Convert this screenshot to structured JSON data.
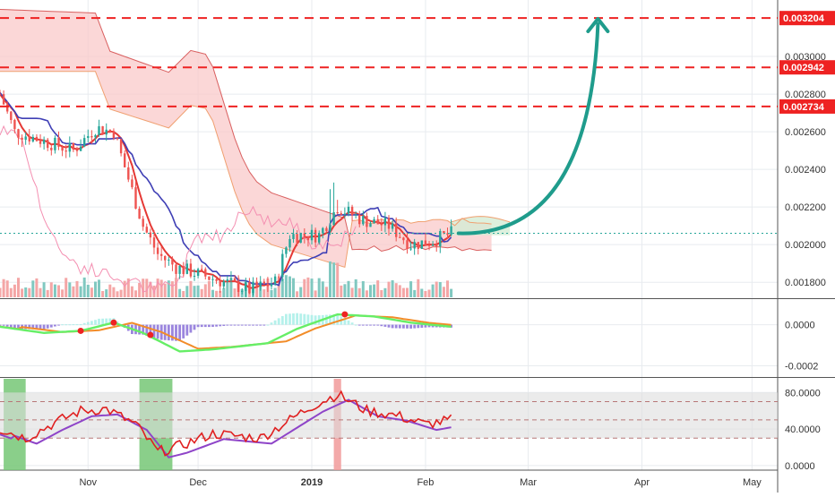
{
  "colors": {
    "background": "#ffffff",
    "grid": "#e8ebef",
    "pane_border": "#555555",
    "axis_text": "#333333",
    "price_line_red": "#e53935",
    "kijun_blue": "#3f3fb5",
    "cloud_red": "#f9caca",
    "cloud_green": "#d5ecd4",
    "span_a": "#f0a070",
    "span_b": "#d96060",
    "lagging_pink": "#f48fb1",
    "candle_up": "#26a69a",
    "candle_down": "#ef5350",
    "vol_up": "#80c8c0",
    "vol_down": "#f4a6a6",
    "current_price_line": "#26a69a",
    "arrow": "#1f9c8c",
    "resistance_line": "#ee2222",
    "label_bg": "#ee2222",
    "label_text": "#ffffff",
    "macd_green": "#66ee66",
    "macd_red": "#ee2222",
    "macd_orange": "#f28c28",
    "macd_purple": "#8a70d8",
    "macd_cyan": "#a8eee8",
    "rsi_red": "#e02020",
    "rsi_purple": "#8e44c8",
    "rsi_band": "#dddddd",
    "rsi_green_zone": "#76c776",
    "rsi_red_zone": "#f19a9a"
  },
  "chart_data": [
    {
      "type": "candlestick",
      "name": "price",
      "yscale": "linear",
      "ylim": [
        0.00172,
        0.0033
      ],
      "grid": true,
      "price_ticks": [
        "0.003000",
        "0.002800",
        "0.002600",
        "0.002400",
        "0.002200",
        "0.002000",
        "0.001800"
      ],
      "resistance_levels": [
        {
          "value": 0.003204,
          "label": "0.003204"
        },
        {
          "value": 0.002942,
          "label": "0.002942"
        },
        {
          "value": 0.002734,
          "label": "0.002734"
        }
      ],
      "current_price": 0.00206,
      "projection_arrow": {
        "from_x": "2019-02-10",
        "from_y": 0.00206,
        "to_x": "2019-03-20",
        "to_y": 0.0032
      }
    },
    {
      "type": "line",
      "name": "macd",
      "ylim": [
        -0.00025,
        0.00012
      ],
      "grid": true,
      "ticks": [
        "0.0000",
        "-0.0002"
      ]
    },
    {
      "type": "line",
      "name": "rsi",
      "ylim": [
        -5,
        95
      ],
      "grid": true,
      "ticks": [
        "80.0000",
        "40.0000",
        "0.0000"
      ],
      "band": [
        30,
        80
      ],
      "dashed_levels": [
        30,
        50,
        70
      ],
      "highlight_zones": [
        {
          "from": "2018-10-09",
          "to": "2018-10-15",
          "color": "green"
        },
        {
          "from": "2018-11-15",
          "to": "2018-11-24",
          "color": "green"
        },
        {
          "from": "2019-01-07",
          "to": "2019-01-09",
          "color": "red"
        }
      ]
    }
  ],
  "x_axis": {
    "start": "2018-10-08",
    "end": "2019-05-08",
    "ticks": [
      {
        "label": "Nov",
        "date": "2018-11-01",
        "bold": false
      },
      {
        "label": "Dec",
        "date": "2018-12-01",
        "bold": false
      },
      {
        "label": "2019",
        "date": "2019-01-01",
        "bold": true
      },
      {
        "label": "Feb",
        "date": "2019-02-01",
        "bold": false
      },
      {
        "label": "Mar",
        "date": "2019-03-01",
        "bold": false
      },
      {
        "label": "Apr",
        "date": "2019-04-01",
        "bold": false
      },
      {
        "label": "May",
        "date": "2019-05-01",
        "bold": false
      }
    ]
  }
}
